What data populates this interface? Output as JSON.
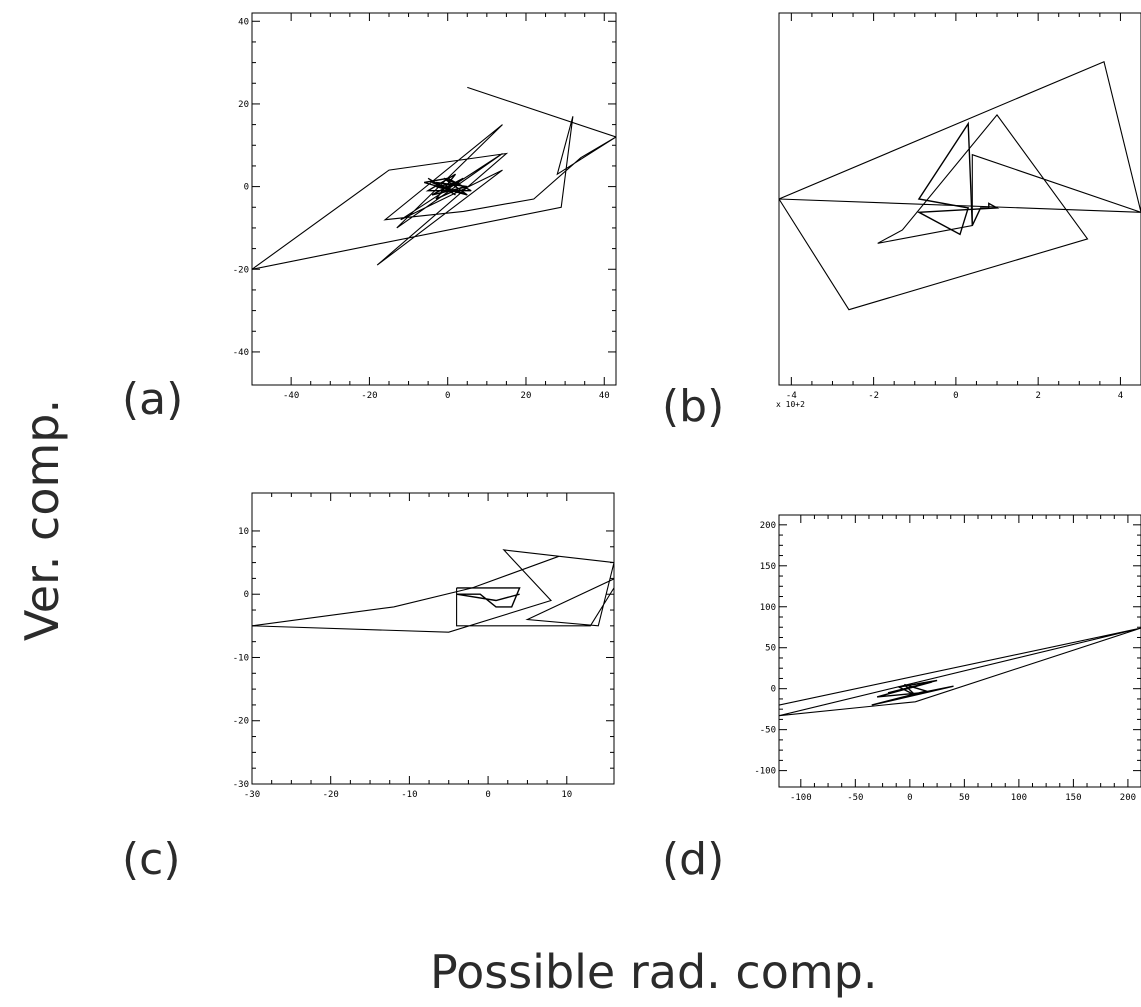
{
  "figure": {
    "ylabel": "Ver. comp.",
    "xlabel": "Possible rad. comp."
  },
  "chart_data": [
    {
      "id": "a",
      "panel_label": "(a)",
      "type": "line",
      "xlim": [
        -50,
        43
      ],
      "ylim": [
        -48,
        42
      ],
      "xticks": [
        -40,
        -20,
        0,
        20,
        40
      ],
      "yticks": [
        -40,
        -20,
        0,
        20,
        40
      ],
      "xtick_labels": [
        "-40",
        "-20",
        "0",
        "20",
        "40"
      ],
      "ytick_labels": [
        "-40",
        "-20",
        "0",
        "20",
        "40"
      ],
      "series": [
        {
          "x": [
            5,
            43,
            28,
            32,
            29,
            -50,
            -15,
            15,
            -18,
            14,
            -12,
            14,
            -13,
            14,
            -16,
            4,
            22,
            34,
            43
          ],
          "y": [
            24,
            12,
            3,
            17,
            -5,
            -20,
            4,
            8,
            -19,
            4,
            -8,
            8,
            -10,
            15,
            -8,
            -6,
            -3,
            7,
            12
          ]
        },
        {
          "x": [
            -5,
            2,
            -3,
            5,
            -4,
            4,
            -2,
            3,
            -3,
            5,
            -6,
            0,
            6,
            -5,
            2,
            -3,
            4,
            -1,
            5,
            -4,
            1
          ],
          "y": [
            2,
            -2,
            1,
            0,
            -2,
            2,
            -1,
            1,
            0,
            -2,
            1,
            2,
            -1,
            -1,
            3,
            -3,
            0,
            2,
            -2,
            1,
            -1
          ]
        }
      ]
    },
    {
      "id": "b",
      "panel_label": "(b)",
      "type": "line",
      "xlim": [
        -4.3,
        4.5
      ],
      "ylim": [
        -4.4,
        4.0
      ],
      "xticks": [
        -4,
        -2,
        0,
        2,
        4
      ],
      "yticks": [],
      "xtick_labels": [
        "-4",
        "-2",
        "0",
        "2",
        "4"
      ],
      "ytick_labels": [],
      "multiplier": "x 10+2",
      "series": [
        {
          "x": [
            4.5,
            -4.3,
            -2.6,
            3.2,
            1.0,
            -1.3,
            -1.9,
            0.4,
            0.4,
            4.5,
            3.6,
            -4.3
          ],
          "y": [
            -0.5,
            -0.2,
            -2.7,
            -1.1,
            1.7,
            -0.9,
            -1.2,
            -0.8,
            0.8,
            -0.5,
            2.9,
            -0.2
          ]
        },
        {
          "x": [
            0.4,
            0.3,
            -0.9,
            0.3,
            0.1,
            -0.9,
            1.0,
            0.8,
            0.8,
            0.6,
            0.4
          ],
          "y": [
            -0.8,
            1.5,
            -0.2,
            -0.4,
            -1.0,
            -0.5,
            -0.4,
            -0.3,
            -0.4,
            -0.4,
            -0.8
          ]
        }
      ]
    },
    {
      "id": "c",
      "panel_label": "(c)",
      "type": "line",
      "xlim": [
        -30,
        16
      ],
      "ylim": [
        -30,
        16
      ],
      "xticks": [
        -30,
        -20,
        -10,
        0,
        10
      ],
      "yticks": [
        -30,
        -20,
        -10,
        0,
        10
      ],
      "xtick_labels": [
        "-30",
        "-20",
        "-10",
        "0",
        "10"
      ],
      "ytick_labels": [
        "-30",
        "-20",
        "-10",
        "0",
        "10"
      ],
      "series": [
        {
          "x": [
            9,
            -2,
            -12,
            -30,
            -5,
            8,
            2,
            16,
            14,
            5,
            17,
            13,
            -4,
            -4
          ],
          "y": [
            6,
            1,
            -2,
            -5,
            -6,
            -1,
            7,
            5,
            -5,
            -4,
            3,
            -5,
            -5,
            1
          ]
        },
        {
          "x": [
            -4,
            4,
            3,
            1,
            -1,
            -4,
            1,
            4
          ],
          "y": [
            1,
            1,
            -2,
            -2,
            0,
            0,
            -1,
            0
          ]
        }
      ]
    },
    {
      "id": "d",
      "panel_label": "(d)",
      "type": "line",
      "xlim": [
        -120,
        212
      ],
      "ylim": [
        -120,
        212
      ],
      "xticks": [
        -100,
        -50,
        0,
        50,
        100,
        150,
        200
      ],
      "yticks": [
        -100,
        -50,
        0,
        50,
        100,
        150,
        200
      ],
      "xtick_labels": [
        "-100",
        "-50",
        "0",
        "50",
        "100",
        "150",
        "200"
      ],
      "ytick_labels": [
        "-100",
        "-50",
        "0",
        "50",
        "100",
        "150",
        "200"
      ],
      "series": [
        {
          "x": [
            -120,
            212,
            5,
            -120,
            212,
            212
          ],
          "y": [
            -20,
            74,
            -16,
            -33,
            74,
            74
          ]
        },
        {
          "x": [
            -35,
            40,
            10,
            -30,
            20,
            -20,
            25,
            -10,
            5,
            -5,
            15,
            -35
          ],
          "y": [
            -20,
            3,
            -5,
            -10,
            8,
            -5,
            10,
            2,
            -8,
            5,
            -3,
            -20
          ]
        }
      ]
    }
  ]
}
